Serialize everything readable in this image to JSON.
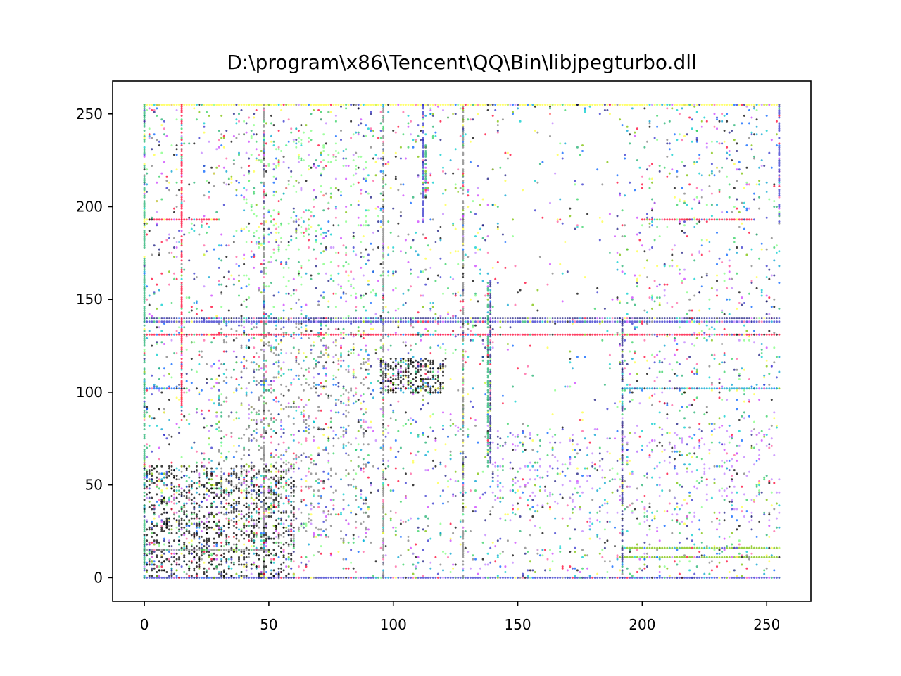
{
  "chart_data": {
    "type": "scatter",
    "title": "D:\\program\\x86\\Tencent\\QQ\\Bin\\libjpegturbo.dll",
    "xlabel": "",
    "ylabel": "",
    "xlim": [
      -12.75,
      267.75
    ],
    "ylim": [
      -12.75,
      267.75
    ],
    "x_ticks": [
      0,
      50,
      100,
      150,
      200,
      250
    ],
    "y_ticks": [
      0,
      50,
      100,
      150,
      200,
      250
    ],
    "grid": false,
    "legend": "none",
    "marker_colors": [
      "#000000",
      "#1a1a80",
      "#3333cc",
      "#0060ff",
      "#00a0d0",
      "#00cccc",
      "#20b070",
      "#30d060",
      "#80ff80",
      "#7ac000",
      "#ffff40",
      "#ff0030",
      "#ff60a0",
      "#cc40ff",
      "#c080ff",
      "#808080"
    ],
    "dense_rows": [
      {
        "y": 255,
        "x_range": [
          0,
          255
        ],
        "color": "#ffff40"
      },
      {
        "y": 140,
        "x_range": [
          0,
          255
        ],
        "color": "#1a1a80"
      },
      {
        "y": 138,
        "x_range": [
          0,
          255
        ],
        "color": "#3333cc"
      },
      {
        "y": 131,
        "x_range": [
          0,
          255
        ],
        "color": "#ff0030"
      },
      {
        "y": 102,
        "x_range": [
          192,
          255
        ],
        "color": "#00a0d0"
      },
      {
        "y": 102,
        "x_range": [
          0,
          16
        ],
        "color": "#0060ff"
      },
      {
        "y": 16,
        "x_range": [
          192,
          255
        ],
        "color": "#7ac000"
      },
      {
        "y": 15,
        "x_range": [
          0,
          50
        ],
        "color": "#808080"
      },
      {
        "y": 11,
        "x_range": [
          190,
          255
        ],
        "color": "#7ac000"
      },
      {
        "y": 0,
        "x_range": [
          0,
          255
        ],
        "color": "#3333cc"
      },
      {
        "y": 193,
        "x_range": [
          0,
          30
        ],
        "color": "#ff0030"
      },
      {
        "y": 193,
        "x_range": [
          200,
          245
        ],
        "color": "#ff0030"
      }
    ],
    "dense_columns": [
      {
        "x": 0,
        "y_range": [
          0,
          255
        ],
        "color": "#20b070"
      },
      {
        "x": 15,
        "y_range": [
          85,
          255
        ],
        "color": "#ff0030"
      },
      {
        "x": 112,
        "y_range": [
          190,
          255
        ],
        "color": "#3333cc"
      },
      {
        "x": 113,
        "y_range": [
          205,
          235
        ],
        "color": "#20b070"
      },
      {
        "x": 138,
        "y_range": [
          60,
          160
        ],
        "color": "#20b070"
      },
      {
        "x": 139,
        "y_range": [
          60,
          160
        ],
        "color": "#1a1a80"
      },
      {
        "x": 255,
        "y_range": [
          190,
          255
        ],
        "color": "#3333cc"
      },
      {
        "x": 48,
        "y_range": [
          0,
          255
        ],
        "color": "#808080"
      },
      {
        "x": 96,
        "y_range": [
          0,
          255
        ],
        "color": "#808080"
      },
      {
        "x": 128,
        "y_range": [
          0,
          255
        ],
        "color": "#808080"
      },
      {
        "x": 192,
        "y_range": [
          0,
          140
        ],
        "color": "#1a1a80"
      }
    ],
    "dense_clusters": [
      {
        "x_range": [
          95,
          120
        ],
        "y_range": [
          100,
          118
        ],
        "color": "#000000",
        "count": 300
      },
      {
        "x_range": [
          0,
          60
        ],
        "y_range": [
          0,
          60
        ],
        "color": "#000000",
        "count": 1200
      },
      {
        "x_range": [
          30,
          90
        ],
        "y_range": [
          20,
          140
        ],
        "color": "#808080",
        "count": 700
      },
      {
        "x_range": [
          140,
          255
        ],
        "y_range": [
          30,
          80
        ],
        "color": "#c080ff",
        "count": 300
      },
      {
        "x_range": [
          40,
          90
        ],
        "y_range": [
          150,
          240
        ],
        "color": "#80ff80",
        "count": 250
      }
    ],
    "scatter_points_approx": 9000
  }
}
